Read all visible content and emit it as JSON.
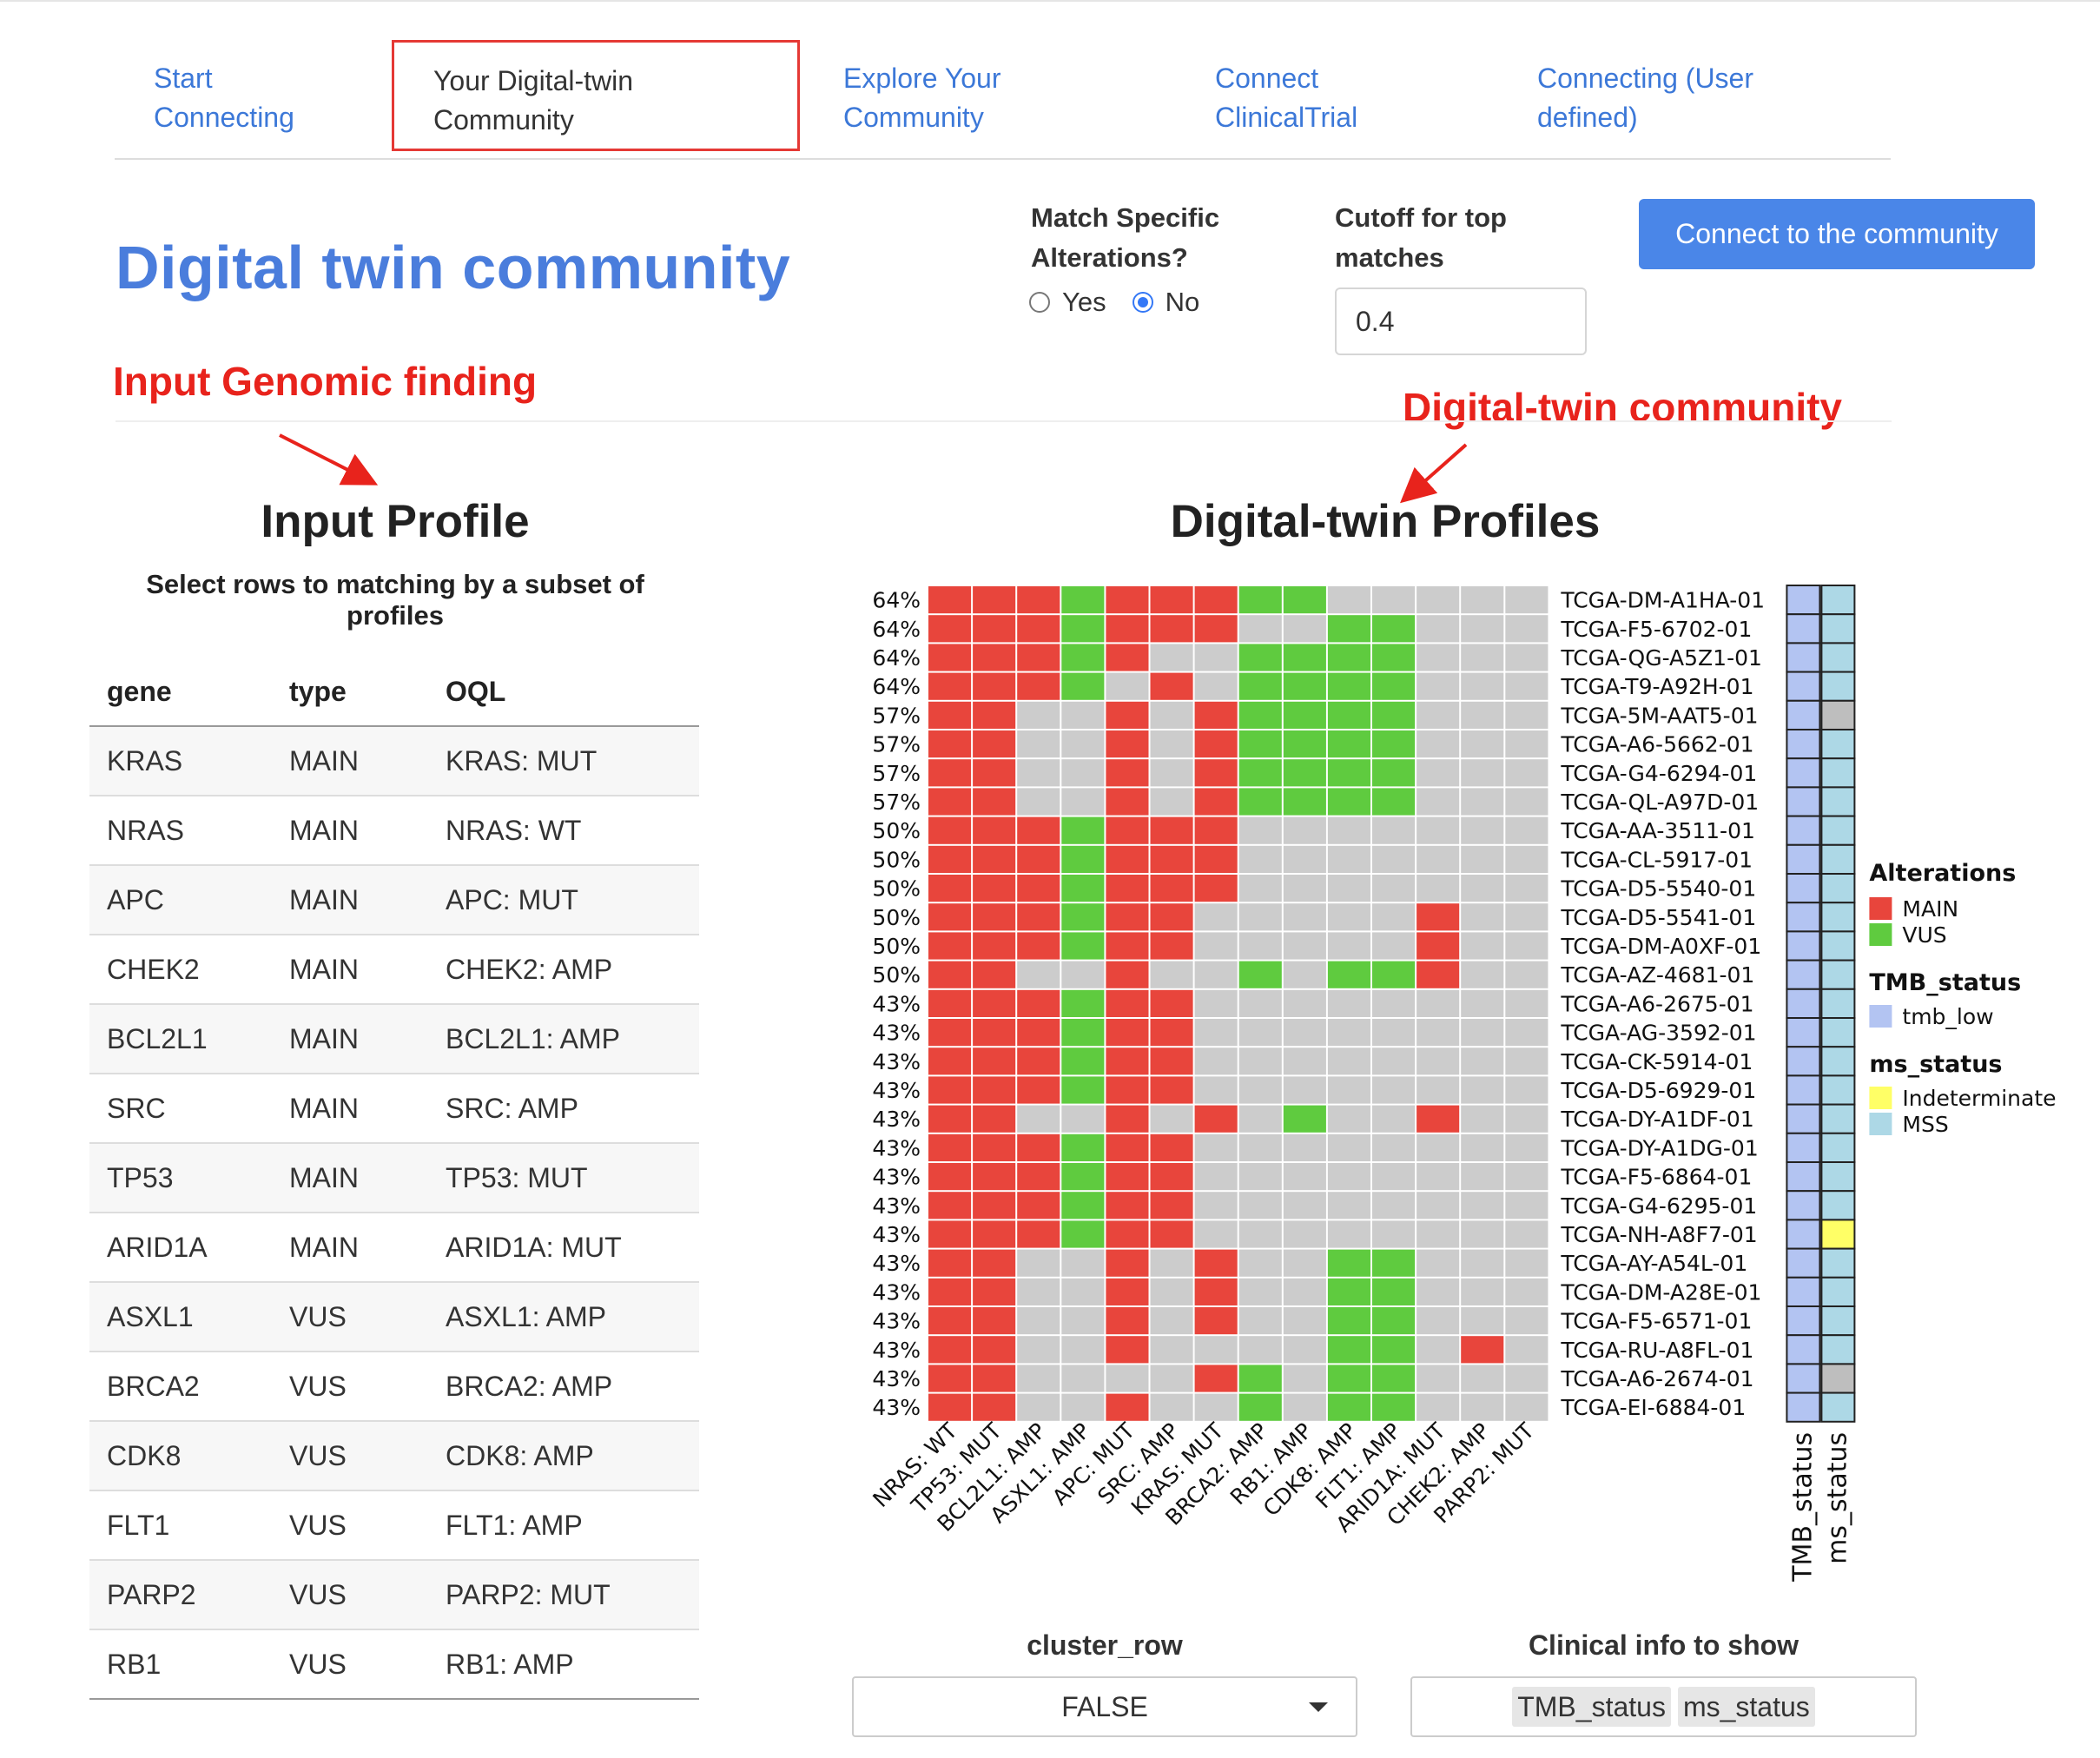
{
  "tabs": [
    {
      "line1": "Start",
      "line2": "Connecting"
    },
    {
      "line1": "Your Digital-twin",
      "line2": "Community"
    },
    {
      "line1": "Explore Your",
      "line2": "Community"
    },
    {
      "line1": "Connect",
      "line2": "ClinicalTrial"
    },
    {
      "line1": "Connecting (User",
      "line2": "defined)"
    }
  ],
  "page_title": "Digital twin community",
  "annotations": {
    "input": "Input Genomic finding",
    "community": "Digital-twin community"
  },
  "controls": {
    "match_label_1": "Match Specific",
    "match_label_2": "Alterations?",
    "yes": "Yes",
    "no": "No",
    "cutoff_label_1": "Cutoff for top",
    "cutoff_label_2": "matches",
    "cutoff_value": "0.4",
    "connect_button": "Connect to the community"
  },
  "input_profile": {
    "title": "Input Profile",
    "subtitle": "Select rows to matching by a subset of profiles",
    "headers": [
      "gene",
      "type",
      "OQL"
    ],
    "rows": [
      [
        "KRAS",
        "MAIN",
        "KRAS: MUT"
      ],
      [
        "NRAS",
        "MAIN",
        "NRAS: WT"
      ],
      [
        "APC",
        "MAIN",
        "APC: MUT"
      ],
      [
        "CHEK2",
        "MAIN",
        "CHEK2: AMP"
      ],
      [
        "BCL2L1",
        "MAIN",
        "BCL2L1: AMP"
      ],
      [
        "SRC",
        "MAIN",
        "SRC: AMP"
      ],
      [
        "TP53",
        "MAIN",
        "TP53: MUT"
      ],
      [
        "ARID1A",
        "MAIN",
        "ARID1A: MUT"
      ],
      [
        "ASXL1",
        "VUS",
        "ASXL1: AMP"
      ],
      [
        "BRCA2",
        "VUS",
        "BRCA2: AMP"
      ],
      [
        "CDK8",
        "VUS",
        "CDK8: AMP"
      ],
      [
        "FLT1",
        "VUS",
        "FLT1: AMP"
      ],
      [
        "PARP2",
        "VUS",
        "PARP2: MUT"
      ],
      [
        "RB1",
        "VUS",
        "RB1: AMP"
      ]
    ]
  },
  "heatmap": {
    "title": "Digital-twin Profiles",
    "columns": [
      "NRAS: WT",
      "TP53: MUT",
      "BCL2L1: AMP",
      "ASXL1: AMP",
      "APC: MUT",
      "SRC: AMP",
      "KRAS: MUT",
      "BRCA2: AMP",
      "RB1: AMP",
      "CDK8: AMP",
      "FLT1: AMP",
      "ARID1A: MUT",
      "CHEK2: AMP",
      "PARP2: MUT"
    ],
    "rows": [
      {
        "pct": "64%",
        "id": "TCGA-DM-A1HA-01",
        "cells": "MMMVMMMVV.....",
        "ms": "MSS"
      },
      {
        "pct": "64%",
        "id": "TCGA-F5-6702-01",
        "cells": "MMMVMMM..VV...",
        "ms": "MSS"
      },
      {
        "pct": "64%",
        "id": "TCGA-QG-A5Z1-01",
        "cells": "MMMVM..VVVV...",
        "ms": "MSS"
      },
      {
        "pct": "64%",
        "id": "TCGA-T9-A92H-01",
        "cells": "MMMV.M.VVVV...",
        "ms": "MSS"
      },
      {
        "pct": "57%",
        "id": "TCGA-5M-AAT5-01",
        "cells": "MM..M.MVVVV...",
        "ms": "NA"
      },
      {
        "pct": "57%",
        "id": "TCGA-A6-5662-01",
        "cells": "MM..M.MVVVV...",
        "ms": "MSS"
      },
      {
        "pct": "57%",
        "id": "TCGA-G4-6294-01",
        "cells": "MM..M.MVVVV...",
        "ms": "MSS"
      },
      {
        "pct": "57%",
        "id": "TCGA-QL-A97D-01",
        "cells": "MM..M.MVVVV...",
        "ms": "MSS"
      },
      {
        "pct": "50%",
        "id": "TCGA-AA-3511-01",
        "cells": "MMMVMMM.......",
        "ms": "MSS"
      },
      {
        "pct": "50%",
        "id": "TCGA-CL-5917-01",
        "cells": "MMMVMMM.......",
        "ms": "MSS"
      },
      {
        "pct": "50%",
        "id": "TCGA-D5-5540-01",
        "cells": "MMMVMMM.......",
        "ms": "MSS"
      },
      {
        "pct": "50%",
        "id": "TCGA-D5-5541-01",
        "cells": "MMMVMM.....M..",
        "ms": "MSS"
      },
      {
        "pct": "50%",
        "id": "TCGA-DM-A0XF-01",
        "cells": "MMMVMM.....M..",
        "ms": "MSS"
      },
      {
        "pct": "50%",
        "id": "TCGA-AZ-4681-01",
        "cells": "MM..M..V.VVM..",
        "ms": "MSS"
      },
      {
        "pct": "43%",
        "id": "TCGA-A6-2675-01",
        "cells": "MMMVMM........",
        "ms": "MSS"
      },
      {
        "pct": "43%",
        "id": "TCGA-AG-3592-01",
        "cells": "MMMVMM........",
        "ms": "MSS"
      },
      {
        "pct": "43%",
        "id": "TCGA-CK-5914-01",
        "cells": "MMMVMM........",
        "ms": "MSS"
      },
      {
        "pct": "43%",
        "id": "TCGA-D5-6929-01",
        "cells": "MMMVMM........",
        "ms": "MSS"
      },
      {
        "pct": "43%",
        "id": "TCGA-DY-A1DF-01",
        "cells": "MM..M.M.V..M..",
        "ms": "MSS"
      },
      {
        "pct": "43%",
        "id": "TCGA-DY-A1DG-01",
        "cells": "MMMVMM........",
        "ms": "MSS"
      },
      {
        "pct": "43%",
        "id": "TCGA-F5-6864-01",
        "cells": "MMMVMM........",
        "ms": "MSS"
      },
      {
        "pct": "43%",
        "id": "TCGA-G4-6295-01",
        "cells": "MMMVMM........",
        "ms": "MSS"
      },
      {
        "pct": "43%",
        "id": "TCGA-NH-A8F7-01",
        "cells": "MMMVMM........",
        "ms": "Indeterminate"
      },
      {
        "pct": "43%",
        "id": "TCGA-AY-A54L-01",
        "cells": "MM..M.M..VV...",
        "ms": "MSS"
      },
      {
        "pct": "43%",
        "id": "TCGA-DM-A28E-01",
        "cells": "MM..M.M..VV...",
        "ms": "MSS"
      },
      {
        "pct": "43%",
        "id": "TCGA-F5-6571-01",
        "cells": "MM..M.M..VV...",
        "ms": "MSS"
      },
      {
        "pct": "43%",
        "id": "TCGA-RU-A8FL-01",
        "cells": "MM..M....VV.M.",
        "ms": "MSS"
      },
      {
        "pct": "43%",
        "id": "TCGA-A6-2674-01",
        "cells": "MM....MV.VV...",
        "ms": "NA"
      },
      {
        "pct": "43%",
        "id": "TCGA-EI-6884-01",
        "cells": "MM..M..V.VV...",
        "ms": "MSS"
      }
    ],
    "side_labels": [
      "TMB_status",
      "ms_status"
    ],
    "legend": {
      "alterations_title": "Alterations",
      "main": "MAIN",
      "vus": "VUS",
      "tmb_title": "TMB_status",
      "tmb_low": "tmb_low",
      "ms_title": "ms_status",
      "indeterminate": "Indeterminate",
      "mss": "MSS"
    },
    "colors": {
      "main": "#e8453c",
      "vus": "#5fcb3f",
      "empty": "#cccccc",
      "tmb_low": "#b3c4f2",
      "mss": "#add8e6",
      "indeterminate": "#ffff66",
      "na": "#bebebe"
    }
  },
  "bottom": {
    "cluster_label": "cluster_row",
    "cluster_value": "FALSE",
    "clinical_label": "Clinical info to show",
    "chips": [
      "TMB_status",
      "ms_status"
    ]
  }
}
